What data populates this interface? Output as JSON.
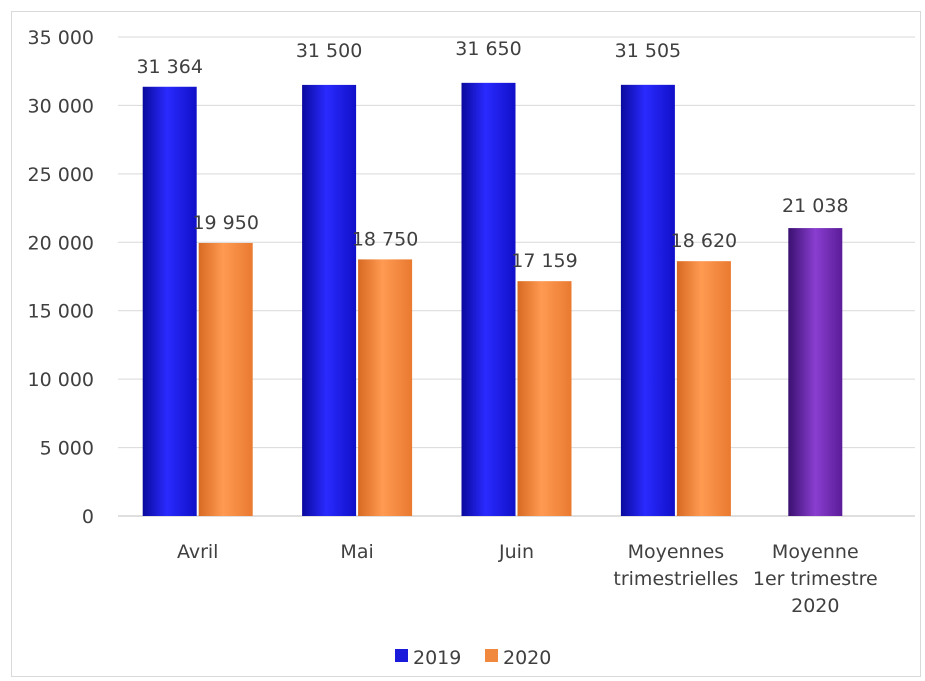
{
  "chart_data": {
    "type": "bar",
    "title": "",
    "xlabel": "",
    "ylabel": "",
    "ylim": [
      0,
      35000
    ],
    "yticks": [
      0,
      5000,
      10000,
      15000,
      20000,
      25000,
      30000,
      35000
    ],
    "ytick_labels": [
      "0",
      "5 000",
      "10 000",
      "15 000",
      "20 000",
      "25 000",
      "30 000",
      "35 000"
    ],
    "grid": true,
    "legend_position": "bottom",
    "categories": [
      [
        "Avril"
      ],
      [
        "Mai"
      ],
      [
        "Juin"
      ],
      [
        "Moyennes",
        "trimestrielles"
      ],
      [
        "Moyenne",
        "1er trimestre",
        "2020"
      ]
    ],
    "series": [
      {
        "name": "2019",
        "color": "#1a1adb",
        "values": [
          31364,
          31500,
          31650,
          31505,
          null
        ],
        "labels": [
          "31 364",
          "31 500",
          "31 650",
          "31 505",
          ""
        ]
      },
      {
        "name": "2020",
        "color": "#f0883e",
        "values": [
          19950,
          18750,
          17159,
          18620,
          null
        ],
        "labels": [
          "19 950",
          "18 750",
          "17 159",
          "18 620",
          ""
        ]
      }
    ],
    "extra_bar": {
      "category_index": 4,
      "value": 21038,
      "label": "21 038",
      "color": "#7a2fb5"
    }
  }
}
